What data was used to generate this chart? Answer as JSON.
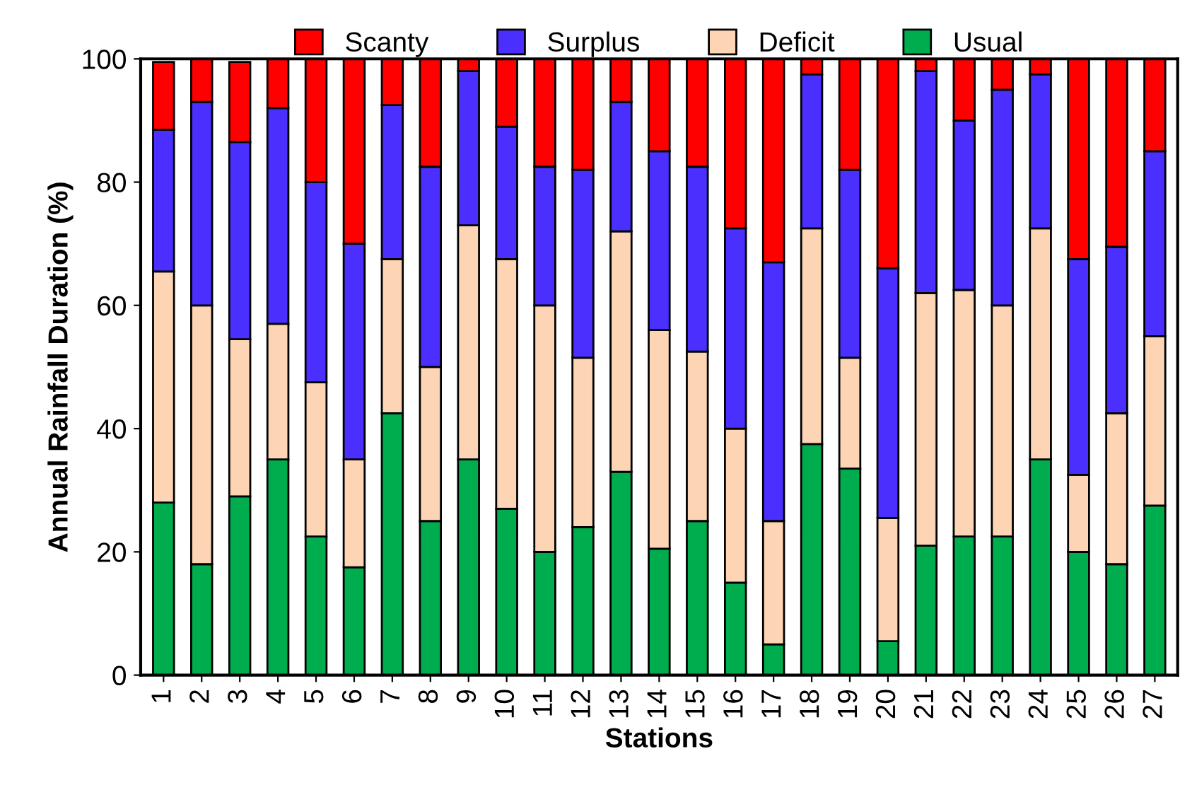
{
  "chart_data": {
    "type": "bar",
    "stacked": true,
    "xlabel": "Stations",
    "ylabel": "Annual Rainfall Duration (%)",
    "categories": [
      "1",
      "2",
      "3",
      "4",
      "5",
      "6",
      "7",
      "8",
      "9",
      "10",
      "11",
      "12",
      "13",
      "14",
      "15",
      "16",
      "17",
      "18",
      "19",
      "20",
      "21",
      "22",
      "23",
      "24",
      "25",
      "26",
      "27"
    ],
    "series": [
      {
        "name": "Usual",
        "color": "#00ad4e",
        "values": [
          28,
          18,
          29,
          35,
          22.5,
          17.5,
          42.5,
          25,
          35,
          27,
          20,
          24,
          33,
          20.5,
          25,
          15,
          5,
          37.5,
          33.5,
          5.5,
          21,
          22.5,
          22.5,
          35,
          20,
          18,
          27.5
        ]
      },
      {
        "name": "Deficit",
        "color": "#fdd5b4",
        "values": [
          37.5,
          42,
          25.5,
          22,
          25,
          17.5,
          25,
          25,
          38,
          40.5,
          40,
          27.5,
          39,
          35.5,
          27.5,
          25,
          20,
          35,
          18,
          20,
          41,
          40,
          37.5,
          37.5,
          12.5,
          24.5,
          27.5
        ]
      },
      {
        "name": "Surplus",
        "color": "#4a2fff",
        "values": [
          23,
          33,
          32,
          35,
          32.5,
          35,
          25,
          32.5,
          25,
          21.5,
          22.5,
          30.5,
          21,
          29,
          30,
          32.5,
          42,
          25,
          30.5,
          40.5,
          36,
          27.5,
          35,
          25,
          35,
          27,
          30
        ]
      },
      {
        "name": "Scanty",
        "color": "#ff0000",
        "values": [
          11,
          7,
          13,
          8,
          20,
          30,
          7.5,
          17.5,
          2,
          11,
          17.5,
          18,
          7,
          15,
          17.5,
          27.5,
          33,
          2.5,
          18,
          34,
          2,
          10,
          5,
          2.5,
          32.5,
          30.5,
          15
        ]
      }
    ],
    "ylim": [
      0,
      100
    ],
    "yticks": [
      0,
      20,
      40,
      60,
      80,
      100
    ],
    "grid": false,
    "legend": "top"
  }
}
